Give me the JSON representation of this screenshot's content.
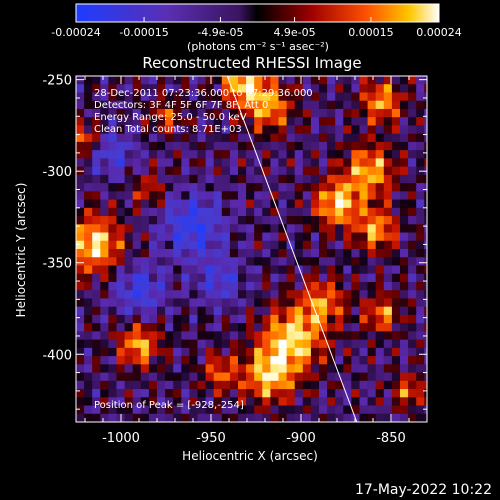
{
  "chart_data": {
    "type": "heatmap",
    "title": "Reconstructed RHESSI Image",
    "xlabel": "Heliocentric X (arcsec)",
    "ylabel": "Heliocentric Y (arcsec)",
    "xlim": [
      -1025,
      -830
    ],
    "ylim": [
      -437,
      -248
    ],
    "x_ticks": [
      "-1000",
      "-950",
      "-900",
      "-850"
    ],
    "x_tick_values": [
      -1000,
      -950,
      -900,
      -850
    ],
    "y_ticks": [
      "-250",
      "-300",
      "-350",
      "-400"
    ],
    "y_tick_values": [
      -250,
      -300,
      -350,
      -400
    ],
    "colorbar": {
      "ticks": [
        "-0.00024",
        "-0.00015",
        "-4.9e-05",
        "4.9e-05",
        "0.00015",
        "0.00024"
      ],
      "tick_values": [
        -0.00024,
        -0.00015,
        -4.9e-05,
        4.9e-05,
        0.00015,
        0.00024
      ],
      "label": "(photons cm⁻² s⁻¹ asec⁻²)",
      "range": [
        -0.00024,
        0.00024
      ]
    },
    "annotations": [
      "28-Dec-2011 07:23:36.000 to 07:29:36.000",
      "Detectors: 3F 4F 5F 6F 7F 8F, Att 0",
      "Energy Range: 25.0 - 50.0 keV",
      "Clean    Total counts: 8.71E+03"
    ],
    "peak_label": "Position of Peak = [-928,-254]",
    "limb_line": {
      "x": [
        -941,
        -869
      ],
      "y": [
        -248,
        -437
      ]
    },
    "sources": [
      {
        "x": -1015,
        "y": -340,
        "amp": 1.0,
        "s": 11
      },
      {
        "x": -932,
        "y": -252,
        "amp": 1.0,
        "s": 8
      },
      {
        "x": -918,
        "y": -265,
        "amp": 0.8,
        "s": 9
      },
      {
        "x": -855,
        "y": -262,
        "amp": 0.8,
        "s": 8
      },
      {
        "x": -862,
        "y": -300,
        "amp": 0.85,
        "s": 10
      },
      {
        "x": -880,
        "y": -318,
        "amp": 0.95,
        "s": 9
      },
      {
        "x": -858,
        "y": -332,
        "amp": 0.8,
        "s": 8
      },
      {
        "x": -905,
        "y": -392,
        "amp": 1.0,
        "s": 12
      },
      {
        "x": -918,
        "y": -412,
        "amp": 0.9,
        "s": 10
      },
      {
        "x": -888,
        "y": -372,
        "amp": 0.7,
        "s": 9
      },
      {
        "x": -990,
        "y": -395,
        "amp": 0.85,
        "s": 8
      },
      {
        "x": -1020,
        "y": -282,
        "amp": 0.65,
        "s": 6
      },
      {
        "x": -855,
        "y": -378,
        "amp": 0.7,
        "s": 7
      },
      {
        "x": -975,
        "y": -270,
        "amp": 0.55,
        "s": 6
      },
      {
        "x": -945,
        "y": -410,
        "amp": 0.6,
        "s": 7
      },
      {
        "x": -840,
        "y": -420,
        "amp": 0.65,
        "s": 6
      },
      {
        "x": -985,
        "y": -310,
        "amp": 0.5,
        "s": 6
      },
      {
        "x": -960,
        "y": -330,
        "amp": -0.7,
        "s": 12
      },
      {
        "x": -990,
        "y": -365,
        "amp": -0.6,
        "s": 10
      },
      {
        "x": -945,
        "y": -360,
        "amp": -0.5,
        "s": 9
      },
      {
        "x": -1005,
        "y": -290,
        "amp": -0.5,
        "s": 9
      }
    ]
  },
  "timestamp": "17-May-2022 10:22"
}
